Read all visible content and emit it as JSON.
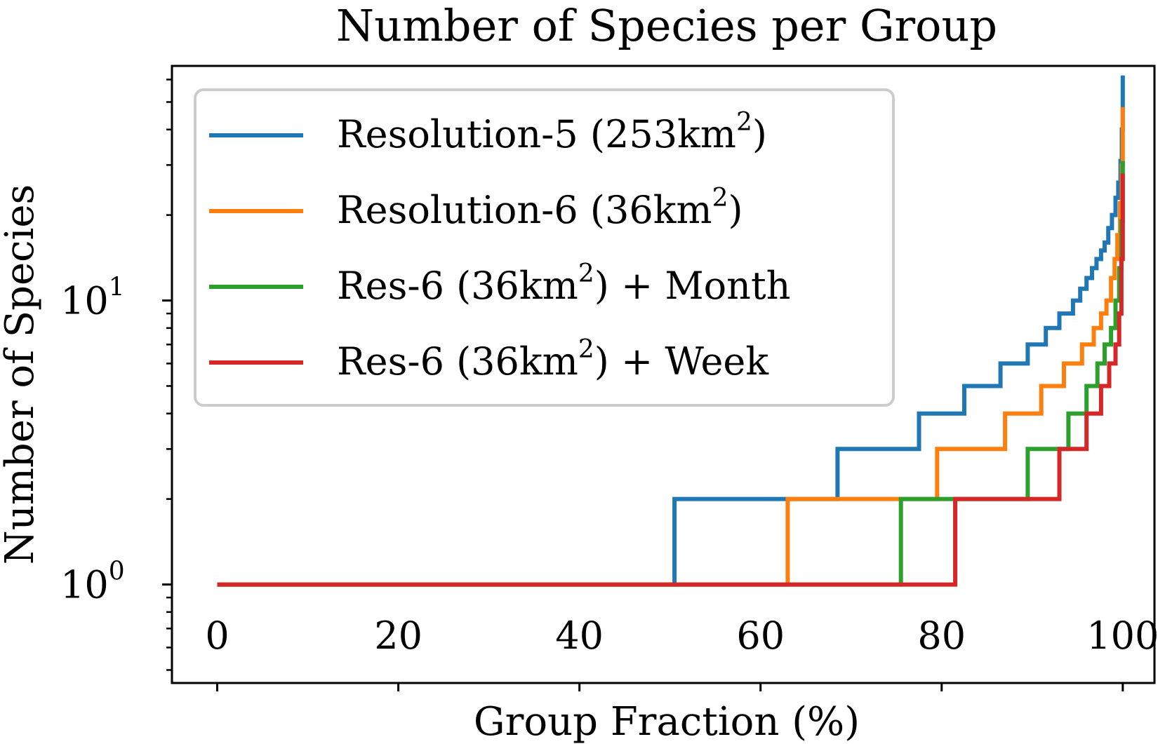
{
  "chart_data": {
    "type": "line",
    "title": "Number of Species per Group",
    "xlabel": "Group Fraction (%)",
    "ylabel": "Number of Species",
    "xlim": [
      -5,
      103.5
    ],
    "ylim": [
      0.45,
      67
    ],
    "yscale": "log",
    "legend_position": "top-left",
    "x_ticks": [
      {
        "value": 0,
        "label": "0"
      },
      {
        "value": 20,
        "label": "20"
      },
      {
        "value": 40,
        "label": "40"
      },
      {
        "value": 60,
        "label": "60"
      },
      {
        "value": 80,
        "label": "80"
      },
      {
        "value": 100,
        "label": "100"
      }
    ],
    "y_ticks": [
      {
        "value": 1,
        "base": "10",
        "exp": "0"
      },
      {
        "value": 10,
        "base": "10",
        "exp": "1"
      }
    ],
    "series": [
      {
        "name_base": "Resolution-5 (253km",
        "name_sup": "2",
        "name_tail": ")",
        "color": "#1f77b4",
        "points": [
          [
            0,
            1
          ],
          [
            50.5,
            1
          ],
          [
            50.5,
            2
          ],
          [
            68.5,
            2
          ],
          [
            68.5,
            3
          ],
          [
            77.5,
            3
          ],
          [
            77.5,
            4
          ],
          [
            82.5,
            4
          ],
          [
            82.5,
            5
          ],
          [
            86.5,
            5
          ],
          [
            86.5,
            6
          ],
          [
            89.5,
            6
          ],
          [
            89.5,
            7
          ],
          [
            91.5,
            7
          ],
          [
            91.5,
            8
          ],
          [
            93,
            8
          ],
          [
            93,
            9
          ],
          [
            94.5,
            9
          ],
          [
            94.5,
            10
          ],
          [
            95.3,
            10
          ],
          [
            95.3,
            11
          ],
          [
            96,
            11
          ],
          [
            96,
            12
          ],
          [
            96.6,
            12
          ],
          [
            96.6,
            13
          ],
          [
            97.1,
            13
          ],
          [
            97.1,
            14
          ],
          [
            97.6,
            14
          ],
          [
            97.6,
            15
          ],
          [
            98,
            15
          ],
          [
            98,
            16
          ],
          [
            98.4,
            16
          ],
          [
            98.4,
            18
          ],
          [
            98.8,
            18
          ],
          [
            98.8,
            20
          ],
          [
            99.2,
            20
          ],
          [
            99.2,
            23
          ],
          [
            99.5,
            23
          ],
          [
            99.5,
            26
          ],
          [
            99.75,
            26
          ],
          [
            99.75,
            31
          ],
          [
            99.9,
            31
          ],
          [
            99.9,
            40
          ],
          [
            100,
            40
          ],
          [
            100,
            62
          ]
        ]
      },
      {
        "name_base": "Resolution-6 (36km",
        "name_sup": "2",
        "name_tail": ")",
        "color": "#ff7f0e",
        "points": [
          [
            0,
            1
          ],
          [
            63,
            1
          ],
          [
            63,
            2
          ],
          [
            79.5,
            2
          ],
          [
            79.5,
            3
          ],
          [
            87,
            3
          ],
          [
            87,
            4
          ],
          [
            91,
            4
          ],
          [
            91,
            5
          ],
          [
            93.5,
            5
          ],
          [
            93.5,
            6
          ],
          [
            95.5,
            6
          ],
          [
            95.5,
            7
          ],
          [
            96.8,
            7
          ],
          [
            96.8,
            8
          ],
          [
            97.6,
            8
          ],
          [
            97.6,
            9
          ],
          [
            98.2,
            9
          ],
          [
            98.2,
            10
          ],
          [
            98.7,
            10
          ],
          [
            98.7,
            12
          ],
          [
            99.1,
            12
          ],
          [
            99.1,
            14
          ],
          [
            99.4,
            14
          ],
          [
            99.4,
            17
          ],
          [
            99.7,
            17
          ],
          [
            99.7,
            22
          ],
          [
            99.9,
            22
          ],
          [
            99.9,
            30
          ],
          [
            100,
            30
          ],
          [
            100,
            48
          ]
        ]
      },
      {
        "name_base": "Res-6 (36km",
        "name_sup": "2",
        "name_tail": ") + Month",
        "color": "#2ca02c",
        "points": [
          [
            0,
            1
          ],
          [
            75.5,
            1
          ],
          [
            75.5,
            2
          ],
          [
            89.5,
            2
          ],
          [
            89.5,
            3
          ],
          [
            94,
            3
          ],
          [
            94,
            4
          ],
          [
            96,
            4
          ],
          [
            96,
            5
          ],
          [
            97.2,
            5
          ],
          [
            97.2,
            6
          ],
          [
            98,
            6
          ],
          [
            98,
            7
          ],
          [
            98.7,
            7
          ],
          [
            98.7,
            8
          ],
          [
            99.2,
            8
          ],
          [
            99.2,
            10
          ],
          [
            99.6,
            10
          ],
          [
            99.6,
            13
          ],
          [
            99.85,
            13
          ],
          [
            99.85,
            19
          ],
          [
            100,
            19
          ],
          [
            100,
            31
          ]
        ]
      },
      {
        "name_base": "Res-6 (36km",
        "name_sup": "2",
        "name_tail": ") + Week",
        "color": "#d62728",
        "points": [
          [
            0,
            1
          ],
          [
            81.5,
            1
          ],
          [
            81.5,
            2
          ],
          [
            93,
            2
          ],
          [
            93,
            3
          ],
          [
            96,
            3
          ],
          [
            96,
            4
          ],
          [
            97.6,
            4
          ],
          [
            97.6,
            5
          ],
          [
            98.5,
            5
          ],
          [
            98.5,
            6
          ],
          [
            99.2,
            6
          ],
          [
            99.2,
            7
          ],
          [
            99.6,
            7
          ],
          [
            99.6,
            9
          ],
          [
            99.85,
            9
          ],
          [
            99.85,
            14
          ],
          [
            100,
            14
          ],
          [
            100,
            28
          ]
        ]
      }
    ]
  }
}
